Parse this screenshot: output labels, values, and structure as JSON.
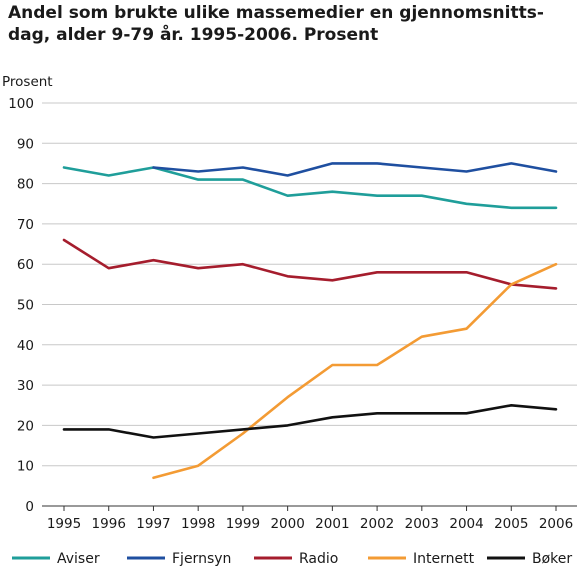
{
  "chart_data": {
    "type": "line",
    "title_line1": "Andel som brukte ulike massemedier en gjennomsnitts-",
    "title_line2": "dag, alder 9-79 år. 1995-2006. Prosent",
    "ylabel": "Prosent",
    "xlabel": "",
    "ylim": [
      0,
      100
    ],
    "yticks": [
      0,
      10,
      20,
      30,
      40,
      50,
      60,
      70,
      80,
      90,
      100
    ],
    "categories": [
      "1995",
      "1996",
      "1997",
      "1998",
      "1999",
      "2000",
      "2001",
      "2002",
      "2003",
      "2004",
      "2005",
      "2006"
    ],
    "grid": true,
    "legend_position": "bottom",
    "series": [
      {
        "name": "Aviser",
        "color": "#1f9e9a",
        "values": [
          84,
          82,
          84,
          81,
          81,
          77,
          78,
          77,
          77,
          75,
          74,
          74
        ]
      },
      {
        "name": "Fjernsyn",
        "color": "#1f4fa0",
        "values": [
          null,
          null,
          84,
          83,
          84,
          82,
          85,
          85,
          84,
          83,
          85,
          83
        ]
      },
      {
        "name": "Radio",
        "color": "#a51d2d",
        "values": [
          66,
          59,
          61,
          59,
          60,
          57,
          56,
          58,
          58,
          58,
          55,
          54
        ]
      },
      {
        "name": "Internett",
        "color": "#f39b34",
        "values": [
          null,
          null,
          7,
          10,
          18,
          27,
          35,
          35,
          42,
          44,
          55,
          60
        ]
      },
      {
        "name": "Bøker",
        "color": "#111111",
        "values": [
          19,
          19,
          17,
          18,
          19,
          20,
          22,
          23,
          23,
          23,
          25,
          24
        ]
      }
    ]
  }
}
